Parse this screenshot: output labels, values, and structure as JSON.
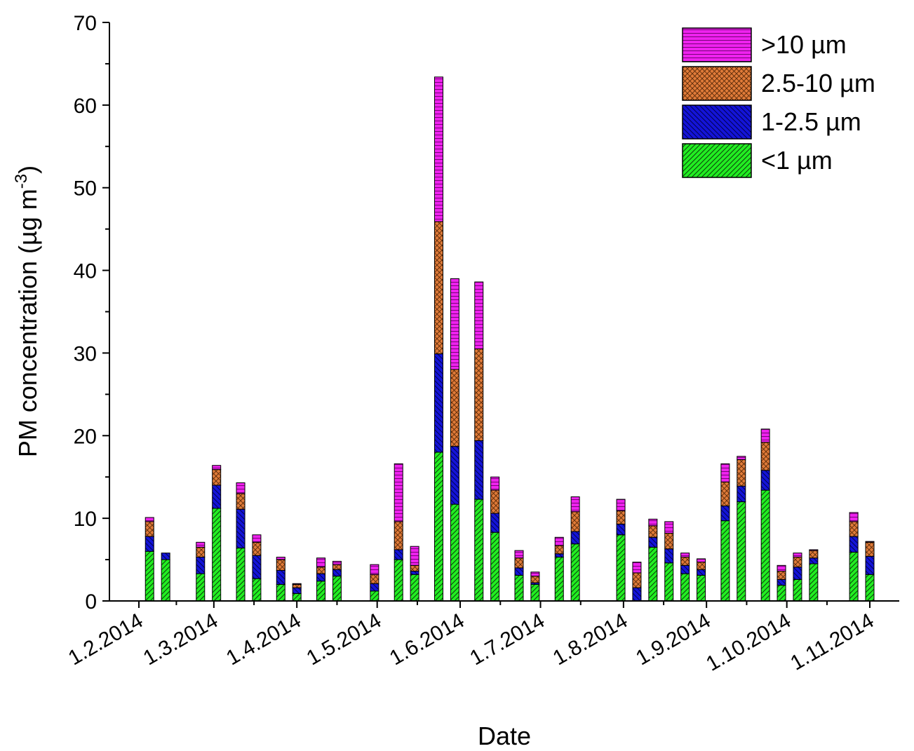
{
  "chart_data": {
    "type": "bar",
    "stacked": true,
    "title": "",
    "xlabel": "Date",
    "ylabel": "PM concentration (µg m",
    "ylabel_superscript": "-3",
    "ylabel_close": ")",
    "ylim": [
      0,
      70
    ],
    "yticks": [
      "0",
      "10",
      "20",
      "30",
      "40",
      "50",
      "60",
      "70"
    ],
    "xlim": [
      "2014-01-21",
      "2014-11-12"
    ],
    "xticks": [
      {
        "date": "2014-02-01",
        "label": "1.2.2014"
      },
      {
        "date": "2014-03-01",
        "label": "1.3.2014"
      },
      {
        "date": "2014-04-01",
        "label": "1.4.2014"
      },
      {
        "date": "2014-05-01",
        "label": "1.5.2014"
      },
      {
        "date": "2014-06-01",
        "label": "1.6.2014"
      },
      {
        "date": "2014-07-01",
        "label": "1.7.2014"
      },
      {
        "date": "2014-08-01",
        "label": "1.8.2014"
      },
      {
        "date": "2014-09-01",
        "label": "1.9.2014"
      },
      {
        "date": "2014-10-01",
        "label": "1.10.2014"
      },
      {
        "date": "2014-11-01",
        "label": "1.11.2014"
      }
    ],
    "legend_position": "top-right",
    "grid": false,
    "series": [
      {
        "name": "<1 µm",
        "color": "#22ee22",
        "pattern": "diagonal"
      },
      {
        "name": "1-2.5 µm",
        "color": "#1414d8",
        "pattern": "back-diagonal"
      },
      {
        "name": "2.5-10 µm",
        "color": "#e07b39",
        "pattern": "crosshatch"
      },
      {
        "name": ">10 µm",
        "color": "#ee22ee",
        "pattern": "horizontal"
      }
    ],
    "legend_order": [
      ">10 µm",
      "2.5-10 µm",
      "1-2.5 µm",
      "<1 µm"
    ],
    "bars": [
      {
        "date": "2014-02-05",
        "values": [
          6.0,
          1.8,
          1.8,
          0.5
        ]
      },
      {
        "date": "2014-02-11",
        "values": [
          5.0,
          0.8,
          0.0,
          0.0
        ]
      },
      {
        "date": "2014-02-24",
        "values": [
          3.3,
          2.0,
          1.2,
          0.6
        ]
      },
      {
        "date": "2014-03-02",
        "values": [
          11.2,
          2.8,
          1.9,
          0.5
        ]
      },
      {
        "date": "2014-03-11",
        "values": [
          6.4,
          4.7,
          1.9,
          1.3
        ]
      },
      {
        "date": "2014-03-17",
        "values": [
          2.7,
          2.8,
          1.6,
          0.9
        ]
      },
      {
        "date": "2014-03-26",
        "values": [
          2.0,
          1.7,
          1.3,
          0.3
        ]
      },
      {
        "date": "2014-04-01",
        "values": [
          0.9,
          0.7,
          0.4,
          0.1
        ]
      },
      {
        "date": "2014-04-10",
        "values": [
          2.4,
          0.9,
          0.8,
          1.1
        ]
      },
      {
        "date": "2014-04-16",
        "values": [
          3.0,
          0.8,
          0.6,
          0.4
        ]
      },
      {
        "date": "2014-04-30",
        "values": [
          1.2,
          0.9,
          1.1,
          1.2
        ]
      },
      {
        "date": "2014-05-09",
        "values": [
          5.0,
          1.2,
          3.4,
          7.0
        ]
      },
      {
        "date": "2014-05-15",
        "values": [
          3.2,
          0.4,
          0.7,
          2.3
        ]
      },
      {
        "date": "2014-05-24",
        "values": [
          18.0,
          11.9,
          16.0,
          17.5
        ]
      },
      {
        "date": "2014-05-30",
        "values": [
          11.7,
          7.0,
          9.3,
          11.0
        ]
      },
      {
        "date": "2014-06-08",
        "values": [
          12.3,
          7.1,
          11.1,
          8.1
        ]
      },
      {
        "date": "2014-06-14",
        "values": [
          8.3,
          2.3,
          2.8,
          1.6
        ]
      },
      {
        "date": "2014-06-23",
        "values": [
          3.1,
          0.9,
          1.2,
          0.9
        ]
      },
      {
        "date": "2014-06-29",
        "values": [
          2.0,
          0.2,
          0.8,
          0.5
        ]
      },
      {
        "date": "2014-07-08",
        "values": [
          5.3,
          0.4,
          1.0,
          1.0
        ]
      },
      {
        "date": "2014-07-14",
        "values": [
          6.9,
          1.5,
          2.4,
          1.8
        ]
      },
      {
        "date": "2014-07-31",
        "values": [
          8.0,
          1.3,
          1.6,
          1.4
        ]
      },
      {
        "date": "2014-08-06",
        "values": [
          0.0,
          1.6,
          1.8,
          1.3
        ]
      },
      {
        "date": "2014-08-12",
        "values": [
          6.5,
          1.2,
          1.4,
          0.8
        ]
      },
      {
        "date": "2014-08-18",
        "values": [
          4.6,
          1.7,
          1.9,
          1.4
        ]
      },
      {
        "date": "2014-08-24",
        "values": [
          3.3,
          1.0,
          1.0,
          0.5
        ]
      },
      {
        "date": "2014-08-30",
        "values": [
          3.1,
          0.7,
          0.9,
          0.4
        ]
      },
      {
        "date": "2014-09-08",
        "values": [
          9.7,
          1.8,
          2.9,
          2.2
        ]
      },
      {
        "date": "2014-09-14",
        "values": [
          12.0,
          1.9,
          3.2,
          0.4
        ]
      },
      {
        "date": "2014-09-23",
        "values": [
          13.4,
          2.4,
          3.4,
          1.6
        ]
      },
      {
        "date": "2014-09-29",
        "values": [
          1.9,
          0.7,
          1.0,
          0.7
        ]
      },
      {
        "date": "2014-10-05",
        "values": [
          2.6,
          1.5,
          1.2,
          0.5
        ]
      },
      {
        "date": "2014-10-11",
        "values": [
          4.5,
          0.7,
          0.9,
          0.1
        ]
      },
      {
        "date": "2014-10-26",
        "values": [
          5.9,
          1.9,
          1.8,
          1.1
        ]
      },
      {
        "date": "2014-11-01",
        "values": [
          3.2,
          2.2,
          1.7,
          0.1
        ]
      }
    ]
  }
}
